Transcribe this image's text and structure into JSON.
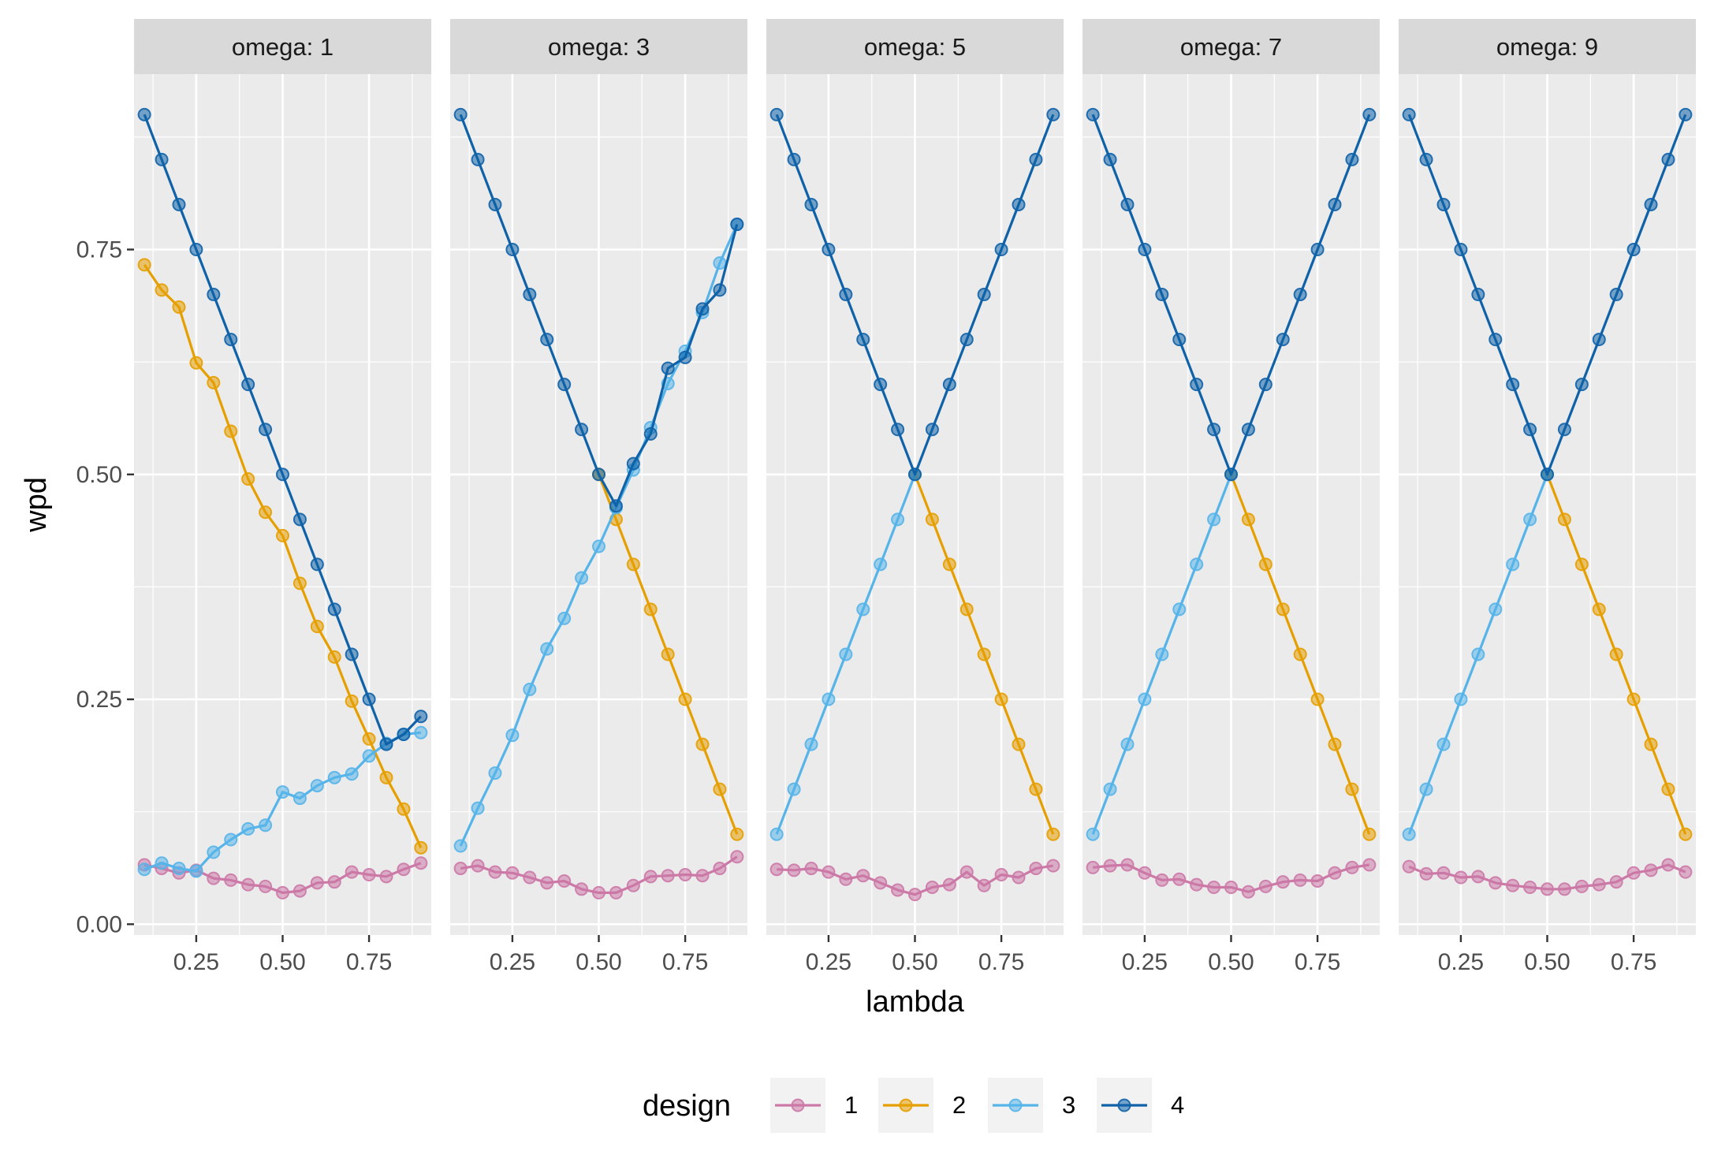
{
  "chart_data": {
    "type": "line",
    "facet_var": "omega",
    "panels": [
      {
        "label": "omega: 1",
        "series": [
          {
            "name": "1",
            "x": [
              0.1,
              0.15,
              0.2,
              0.25,
              0.3,
              0.35,
              0.4,
              0.45,
              0.5,
              0.55,
              0.6,
              0.65,
              0.7,
              0.75,
              0.8,
              0.85,
              0.9
            ],
            "values": [
              0.066,
              0.062,
              0.057,
              0.06,
              0.051,
              0.049,
              0.044,
              0.042,
              0.035,
              0.037,
              0.046,
              0.047,
              0.058,
              0.055,
              0.053,
              0.061,
              0.068
            ]
          },
          {
            "name": "2",
            "x": [
              0.1,
              0.15,
              0.2,
              0.25,
              0.3,
              0.35,
              0.4,
              0.45,
              0.5,
              0.55,
              0.6,
              0.65,
              0.7,
              0.75,
              0.8,
              0.85,
              0.9
            ],
            "values": [
              0.733,
              0.705,
              0.686,
              0.624,
              0.602,
              0.548,
              0.495,
              0.458,
              0.432,
              0.379,
              0.331,
              0.297,
              0.248,
              0.206,
              0.163,
              0.128,
              0.085
            ]
          },
          {
            "name": "3",
            "x": [
              0.1,
              0.15,
              0.2,
              0.25,
              0.3,
              0.35,
              0.4,
              0.45,
              0.5,
              0.55,
              0.6,
              0.65,
              0.7,
              0.75,
              0.8,
              0.85,
              0.9
            ],
            "values": [
              0.061,
              0.068,
              0.062,
              0.059,
              0.08,
              0.094,
              0.106,
              0.11,
              0.147,
              0.14,
              0.154,
              0.163,
              0.167,
              0.187,
              0.201,
              0.211,
              0.213
            ]
          },
          {
            "name": "4",
            "x": [
              0.1,
              0.15,
              0.2,
              0.25,
              0.3,
              0.35,
              0.4,
              0.45,
              0.5,
              0.55,
              0.6,
              0.65,
              0.7,
              0.75,
              0.8,
              0.85,
              0.9
            ],
            "values": [
              0.9,
              0.85,
              0.8,
              0.75,
              0.7,
              0.65,
              0.6,
              0.55,
              0.5,
              0.45,
              0.4,
              0.35,
              0.3,
              0.25,
              0.2,
              0.211,
              0.231
            ]
          }
        ]
      },
      {
        "label": "omega: 3",
        "series": [
          {
            "name": "1",
            "x": [
              0.1,
              0.15,
              0.2,
              0.25,
              0.3,
              0.35,
              0.4,
              0.45,
              0.5,
              0.55,
              0.6,
              0.65,
              0.7,
              0.75,
              0.8,
              0.85,
              0.9
            ],
            "values": [
              0.062,
              0.065,
              0.058,
              0.057,
              0.052,
              0.046,
              0.048,
              0.039,
              0.035,
              0.035,
              0.043,
              0.053,
              0.054,
              0.055,
              0.054,
              0.062,
              0.075
            ]
          },
          {
            "name": "2",
            "x": [
              0.5,
              0.55,
              0.6,
              0.65,
              0.7,
              0.75,
              0.8,
              0.85,
              0.9
            ],
            "values": [
              0.5,
              0.45,
              0.4,
              0.35,
              0.3,
              0.25,
              0.2,
              0.15,
              0.1
            ]
          },
          {
            "name": "3",
            "x": [
              0.1,
              0.15,
              0.2,
              0.25,
              0.3,
              0.35,
              0.4,
              0.45,
              0.5,
              0.55,
              0.6,
              0.65,
              0.7,
              0.75,
              0.8,
              0.85,
              0.9
            ],
            "values": [
              0.087,
              0.129,
              0.168,
              0.21,
              0.261,
              0.306,
              0.34,
              0.385,
              0.42,
              0.463,
              0.505,
              0.552,
              0.601,
              0.637,
              0.68,
              0.735,
              0.778
            ]
          },
          {
            "name": "4",
            "x": [
              0.1,
              0.15,
              0.2,
              0.25,
              0.3,
              0.35,
              0.4,
              0.45,
              0.5,
              0.55,
              0.6,
              0.65,
              0.7,
              0.75,
              0.8,
              0.85,
              0.9
            ],
            "values": [
              0.9,
              0.85,
              0.8,
              0.75,
              0.7,
              0.65,
              0.6,
              0.55,
              0.5,
              0.465,
              0.512,
              0.545,
              0.618,
              0.63,
              0.684,
              0.705,
              0.778
            ]
          }
        ]
      },
      {
        "label": "omega: 5",
        "series": [
          {
            "name": "1",
            "x": [
              0.1,
              0.15,
              0.2,
              0.25,
              0.3,
              0.35,
              0.4,
              0.45,
              0.5,
              0.55,
              0.6,
              0.65,
              0.7,
              0.75,
              0.8,
              0.85,
              0.9
            ],
            "values": [
              0.061,
              0.06,
              0.062,
              0.058,
              0.05,
              0.054,
              0.046,
              0.038,
              0.033,
              0.041,
              0.044,
              0.058,
              0.043,
              0.055,
              0.052,
              0.062,
              0.065
            ]
          },
          {
            "name": "2",
            "x": [
              0.5,
              0.55,
              0.6,
              0.65,
              0.7,
              0.75,
              0.8,
              0.85,
              0.9
            ],
            "values": [
              0.5,
              0.45,
              0.4,
              0.35,
              0.3,
              0.25,
              0.2,
              0.15,
              0.1
            ]
          },
          {
            "name": "3",
            "x": [
              0.1,
              0.15,
              0.2,
              0.25,
              0.3,
              0.35,
              0.4,
              0.45,
              0.5
            ],
            "values": [
              0.1,
              0.15,
              0.2,
              0.25,
              0.3,
              0.35,
              0.4,
              0.45,
              0.5
            ]
          },
          {
            "name": "4",
            "x": [
              0.1,
              0.15,
              0.2,
              0.25,
              0.3,
              0.35,
              0.4,
              0.45,
              0.5,
              0.55,
              0.6,
              0.65,
              0.7,
              0.75,
              0.8,
              0.85,
              0.9
            ],
            "values": [
              0.9,
              0.85,
              0.8,
              0.75,
              0.7,
              0.65,
              0.6,
              0.55,
              0.5,
              0.55,
              0.6,
              0.65,
              0.7,
              0.75,
              0.8,
              0.85,
              0.9
            ]
          }
        ]
      },
      {
        "label": "omega: 7",
        "series": [
          {
            "name": "1",
            "x": [
              0.1,
              0.15,
              0.2,
              0.25,
              0.3,
              0.35,
              0.4,
              0.45,
              0.5,
              0.55,
              0.6,
              0.65,
              0.7,
              0.75,
              0.8,
              0.85,
              0.9
            ],
            "values": [
              0.063,
              0.065,
              0.066,
              0.057,
              0.049,
              0.05,
              0.044,
              0.041,
              0.041,
              0.036,
              0.042,
              0.047,
              0.049,
              0.048,
              0.057,
              0.063,
              0.066
            ]
          },
          {
            "name": "2",
            "x": [
              0.5,
              0.55,
              0.6,
              0.65,
              0.7,
              0.75,
              0.8,
              0.85,
              0.9
            ],
            "values": [
              0.5,
              0.45,
              0.4,
              0.35,
              0.3,
              0.25,
              0.2,
              0.15,
              0.1
            ]
          },
          {
            "name": "3",
            "x": [
              0.1,
              0.15,
              0.2,
              0.25,
              0.3,
              0.35,
              0.4,
              0.45,
              0.5
            ],
            "values": [
              0.1,
              0.15,
              0.2,
              0.25,
              0.3,
              0.35,
              0.4,
              0.45,
              0.5
            ]
          },
          {
            "name": "4",
            "x": [
              0.1,
              0.15,
              0.2,
              0.25,
              0.3,
              0.35,
              0.4,
              0.45,
              0.5,
              0.55,
              0.6,
              0.65,
              0.7,
              0.75,
              0.8,
              0.85,
              0.9
            ],
            "values": [
              0.9,
              0.85,
              0.8,
              0.75,
              0.7,
              0.65,
              0.6,
              0.55,
              0.5,
              0.55,
              0.6,
              0.65,
              0.7,
              0.75,
              0.8,
              0.85,
              0.9
            ]
          }
        ]
      },
      {
        "label": "omega: 9",
        "series": [
          {
            "name": "1",
            "x": [
              0.1,
              0.15,
              0.2,
              0.25,
              0.3,
              0.35,
              0.4,
              0.45,
              0.5,
              0.55,
              0.6,
              0.65,
              0.7,
              0.75,
              0.8,
              0.85,
              0.9
            ],
            "values": [
              0.064,
              0.056,
              0.057,
              0.052,
              0.053,
              0.046,
              0.043,
              0.041,
              0.039,
              0.039,
              0.042,
              0.044,
              0.047,
              0.057,
              0.06,
              0.066,
              0.058
            ]
          },
          {
            "name": "2",
            "x": [
              0.5,
              0.55,
              0.6,
              0.65,
              0.7,
              0.75,
              0.8,
              0.85,
              0.9
            ],
            "values": [
              0.5,
              0.45,
              0.4,
              0.35,
              0.3,
              0.25,
              0.2,
              0.15,
              0.1
            ]
          },
          {
            "name": "3",
            "x": [
              0.1,
              0.15,
              0.2,
              0.25,
              0.3,
              0.35,
              0.4,
              0.45,
              0.5
            ],
            "values": [
              0.1,
              0.15,
              0.2,
              0.25,
              0.3,
              0.35,
              0.4,
              0.45,
              0.5
            ]
          },
          {
            "name": "4",
            "x": [
              0.1,
              0.15,
              0.2,
              0.25,
              0.3,
              0.35,
              0.4,
              0.45,
              0.5,
              0.55,
              0.6,
              0.65,
              0.7,
              0.75,
              0.8,
              0.85,
              0.9
            ],
            "values": [
              0.9,
              0.85,
              0.8,
              0.75,
              0.7,
              0.65,
              0.6,
              0.55,
              0.5,
              0.55,
              0.6,
              0.65,
              0.7,
              0.75,
              0.8,
              0.85,
              0.9
            ]
          }
        ]
      }
    ],
    "xlabel": "lambda",
    "ylabel": "wpd",
    "xlim": [
      0.07,
      0.93
    ],
    "ylim": [
      -0.012,
      0.945
    ],
    "xticks": [
      0.25,
      0.5,
      0.75
    ],
    "xtick_labels": [
      "0.25",
      "0.50",
      "0.75"
    ],
    "yticks": [
      0,
      0.25,
      0.5,
      0.75
    ],
    "ytick_labels": [
      "0.00",
      "0.25",
      "0.50",
      "0.75"
    ],
    "grid": true,
    "legend": {
      "title": "design",
      "position": "bottom",
      "entries": [
        {
          "label": "1",
          "color": "#CC79A7"
        },
        {
          "label": "2",
          "color": "#E69F00"
        },
        {
          "label": "3",
          "color": "#56B4E9"
        },
        {
          "label": "4",
          "color": "#0F62A8"
        }
      ]
    },
    "colors": {
      "1": "#CC79A7",
      "2": "#E69F00",
      "3": "#56B4E9",
      "4": "#0F62A8"
    },
    "panel_background": "#EBEBEB",
    "strip_background": "#D9D9D9"
  }
}
